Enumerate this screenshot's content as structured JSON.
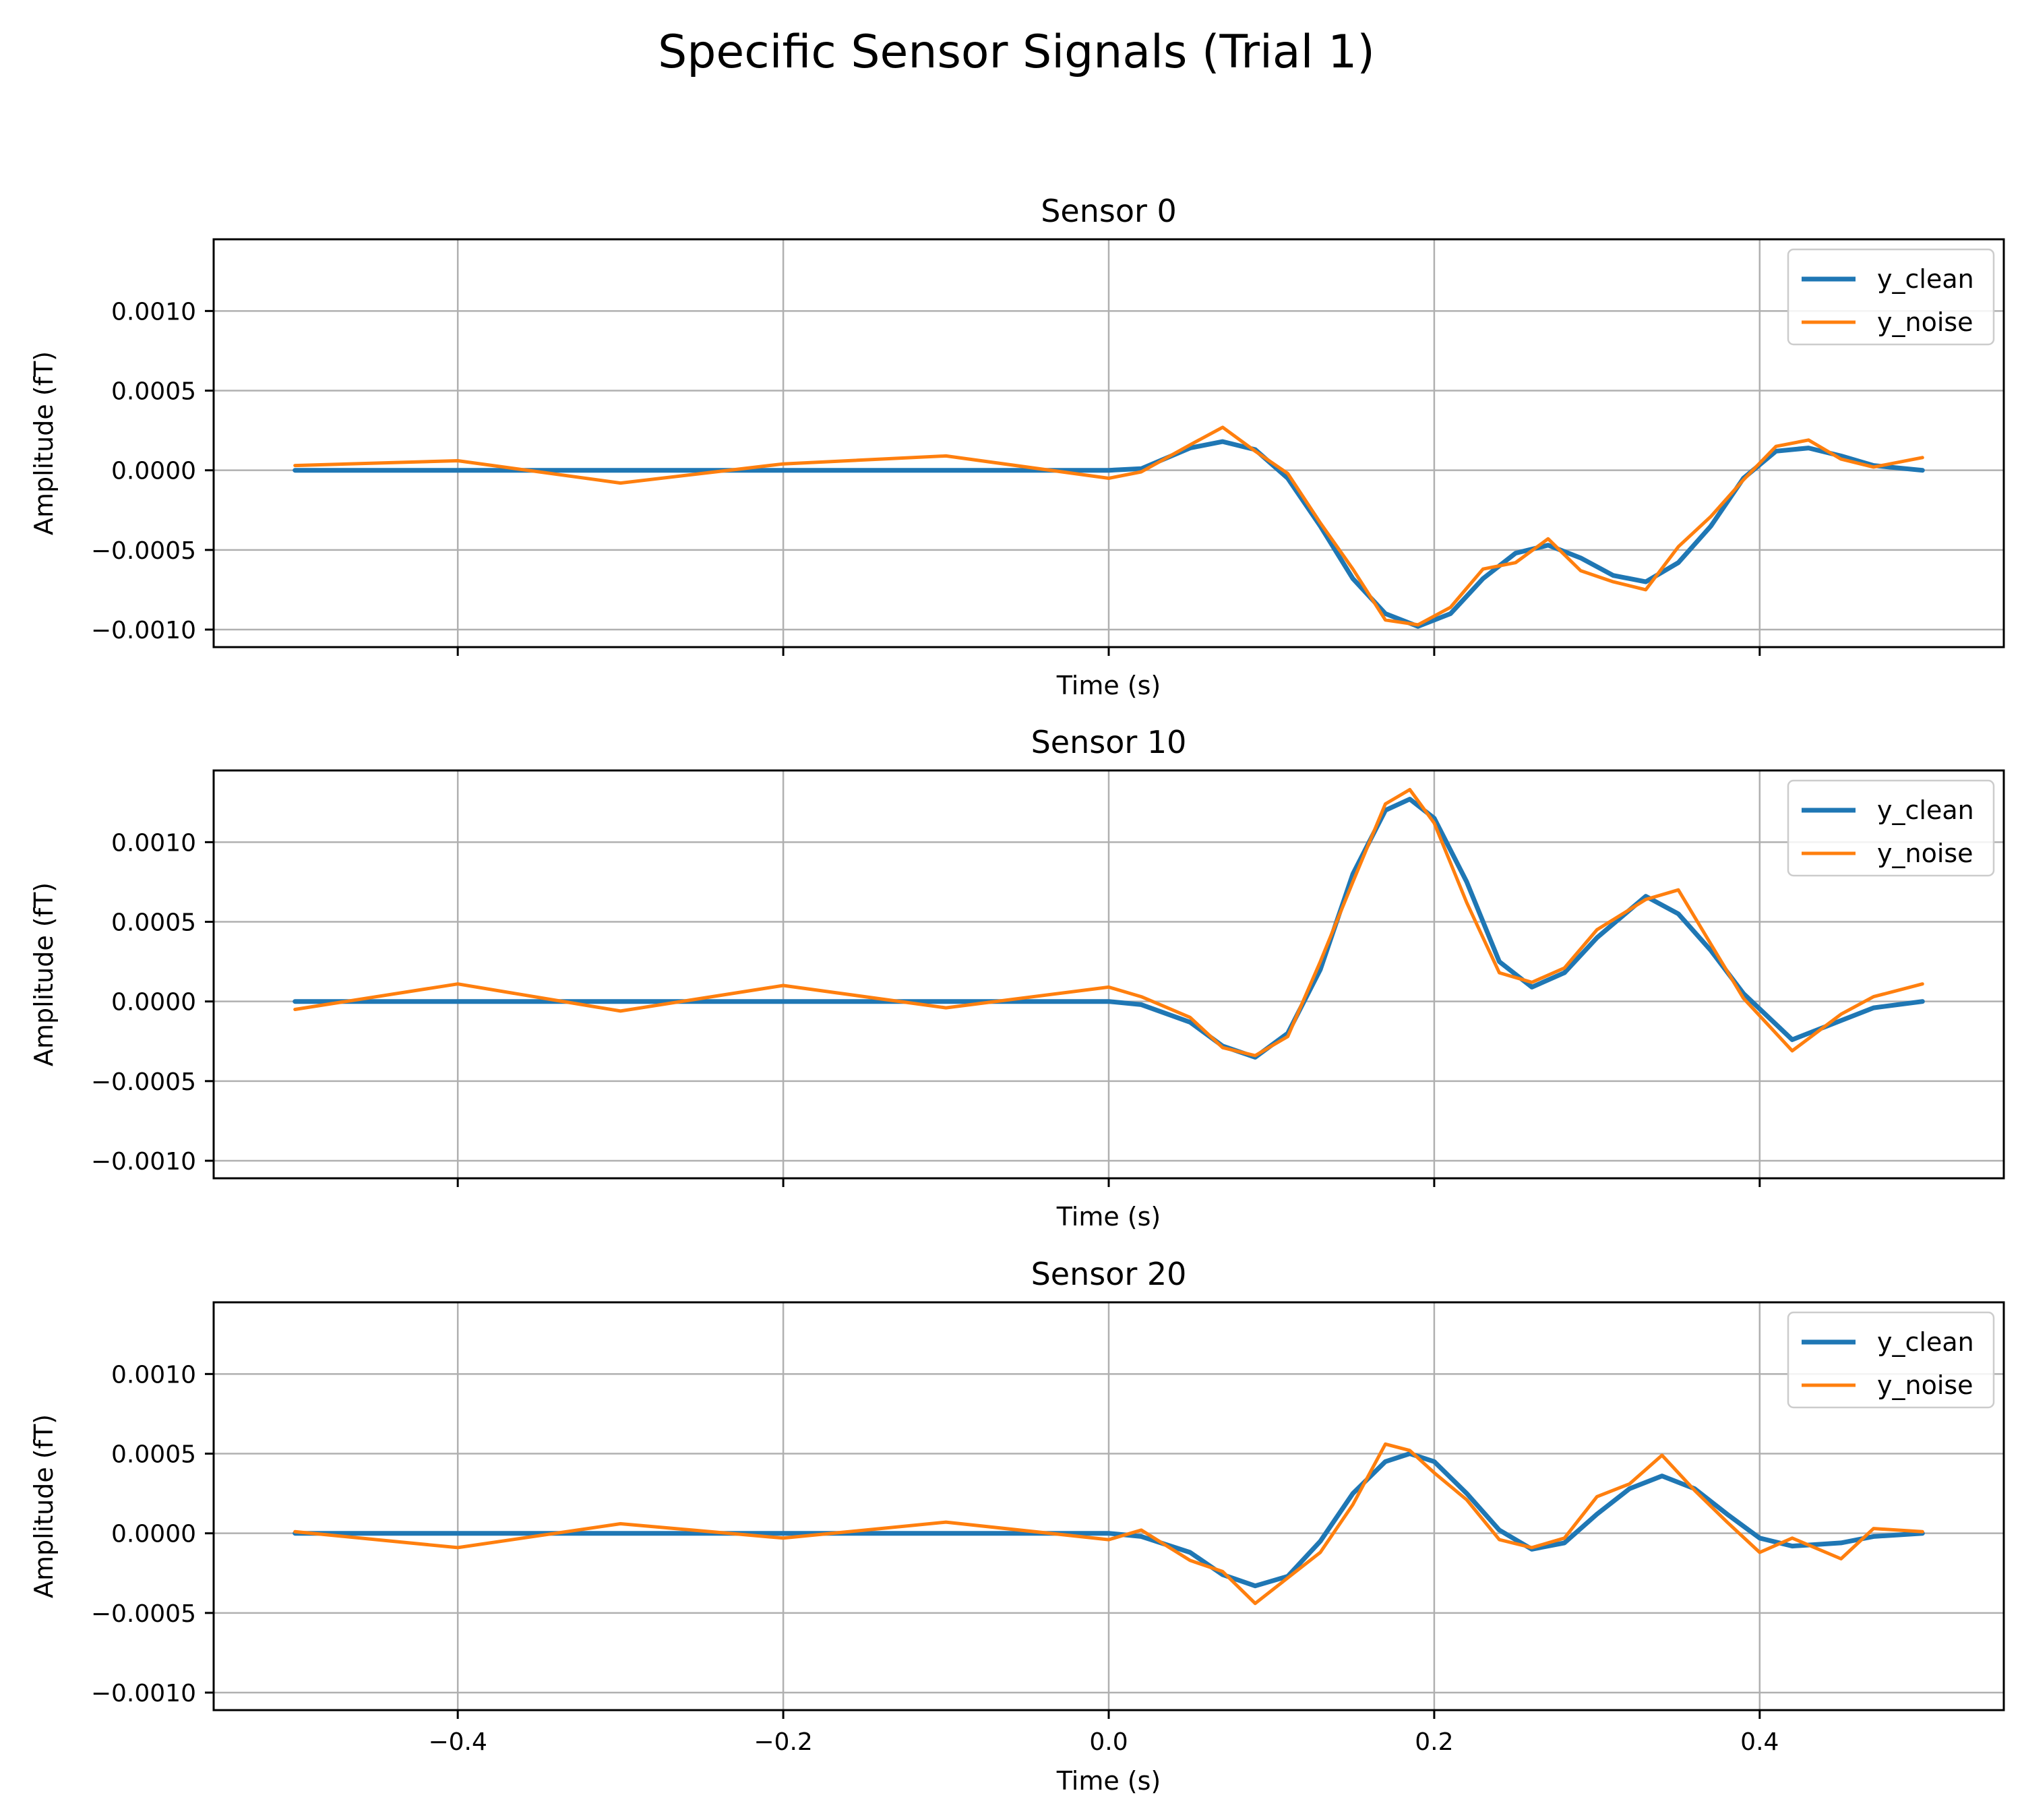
{
  "figure": {
    "title": "Specific Sensor Signals (Trial 1)"
  },
  "colors": {
    "clean": "#1f77b4",
    "noise": "#ff7f0e",
    "grid": "#b0b0b0",
    "axis": "#000000"
  },
  "chart_data": [
    {
      "type": "line",
      "title": "Sensor 0",
      "xlabel": "Time (s)",
      "ylabel": "Amplitude  (fT)",
      "xlim": [
        -0.55,
        0.55
      ],
      "ylim": [
        -0.00111,
        0.00145
      ],
      "xticks": [
        -0.4,
        -0.2,
        0.0,
        0.2,
        0.4
      ],
      "xtick_labels": [],
      "yticks": [
        -0.001,
        -0.0005,
        0.0,
        0.0005,
        0.001
      ],
      "ytick_labels": [
        "−0.0010",
        "−0.0005",
        "0.0000",
        "0.0005",
        "0.0010"
      ],
      "grid": true,
      "legend": "upper right",
      "series": [
        {
          "name": "y_clean",
          "x": [
            -0.5,
            -0.4,
            -0.3,
            -0.2,
            -0.1,
            0.0,
            0.02,
            0.05,
            0.07,
            0.09,
            0.11,
            0.13,
            0.15,
            0.17,
            0.19,
            0.21,
            0.23,
            0.25,
            0.27,
            0.29,
            0.31,
            0.33,
            0.35,
            0.37,
            0.39,
            0.41,
            0.43,
            0.45,
            0.47,
            0.5
          ],
          "y": [
            0,
            0,
            0,
            0,
            0,
            0,
            1e-05,
            0.00014,
            0.00018,
            0.00013,
            -5e-05,
            -0.00035,
            -0.00068,
            -0.0009,
            -0.00098,
            -0.0009,
            -0.00068,
            -0.00052,
            -0.00047,
            -0.00055,
            -0.00066,
            -0.0007,
            -0.00058,
            -0.00035,
            -5e-05,
            0.00012,
            0.00014,
            9e-05,
            3e-05,
            0
          ]
        },
        {
          "name": "y_noise",
          "x": [
            -0.5,
            -0.4,
            -0.3,
            -0.2,
            -0.1,
            0.0,
            0.02,
            0.05,
            0.07,
            0.09,
            0.11,
            0.13,
            0.15,
            0.17,
            0.19,
            0.21,
            0.23,
            0.25,
            0.27,
            0.29,
            0.31,
            0.33,
            0.35,
            0.37,
            0.39,
            0.41,
            0.43,
            0.45,
            0.47,
            0.5
          ],
          "y": [
            3e-05,
            6e-05,
            -8e-05,
            4e-05,
            9e-05,
            -5e-05,
            -1e-05,
            0.00016,
            0.00027,
            0.00012,
            -2e-05,
            -0.00033,
            -0.00062,
            -0.00094,
            -0.00097,
            -0.00086,
            -0.00062,
            -0.00058,
            -0.00043,
            -0.00063,
            -0.0007,
            -0.00075,
            -0.00048,
            -0.00029,
            -6e-05,
            0.00015,
            0.00019,
            7e-05,
            2e-05,
            8e-05
          ]
        }
      ]
    },
    {
      "type": "line",
      "title": "Sensor 10",
      "xlabel": "Time (s)",
      "ylabel": "Amplitude  (fT)",
      "xlim": [
        -0.55,
        0.55
      ],
      "ylim": [
        -0.00111,
        0.00145
      ],
      "xticks": [
        -0.4,
        -0.2,
        0.0,
        0.2,
        0.4
      ],
      "xtick_labels": [],
      "yticks": [
        -0.001,
        -0.0005,
        0.0,
        0.0005,
        0.001
      ],
      "ytick_labels": [
        "−0.0010",
        "−0.0005",
        "0.0000",
        "0.0005",
        "0.0010"
      ],
      "grid": true,
      "legend": "upper right",
      "series": [
        {
          "name": "y_clean",
          "x": [
            -0.5,
            -0.4,
            -0.3,
            -0.2,
            -0.1,
            0.0,
            0.02,
            0.05,
            0.07,
            0.09,
            0.11,
            0.13,
            0.15,
            0.17,
            0.185,
            0.2,
            0.22,
            0.24,
            0.26,
            0.28,
            0.3,
            0.33,
            0.35,
            0.37,
            0.39,
            0.42,
            0.45,
            0.47,
            0.5
          ],
          "y": [
            0,
            0,
            0,
            0,
            0,
            0,
            -2e-05,
            -0.00013,
            -0.00028,
            -0.00035,
            -0.0002,
            0.0002,
            0.0008,
            0.0012,
            0.00127,
            0.00115,
            0.00075,
            0.00025,
            9e-05,
            0.00018,
            0.0004,
            0.00066,
            0.00055,
            0.00032,
            5e-05,
            -0.00024,
            -0.00012,
            -4e-05,
            0
          ]
        },
        {
          "name": "y_noise",
          "x": [
            -0.5,
            -0.4,
            -0.3,
            -0.2,
            -0.1,
            0.0,
            0.02,
            0.05,
            0.07,
            0.09,
            0.11,
            0.13,
            0.15,
            0.17,
            0.185,
            0.2,
            0.22,
            0.24,
            0.26,
            0.28,
            0.3,
            0.33,
            0.35,
            0.37,
            0.39,
            0.42,
            0.45,
            0.47,
            0.5
          ],
          "y": [
            -5e-05,
            0.00011,
            -6e-05,
            0.0001,
            -4e-05,
            9e-05,
            3e-05,
            -0.0001,
            -0.00029,
            -0.00034,
            -0.00022,
            0.00025,
            0.00075,
            0.00124,
            0.00133,
            0.00112,
            0.00062,
            0.00018,
            0.00012,
            0.00021,
            0.00045,
            0.00064,
            0.0007,
            0.00036,
            2e-05,
            -0.00031,
            -8e-05,
            3e-05,
            0.00011
          ]
        }
      ]
    },
    {
      "type": "line",
      "title": "Sensor 20",
      "xlabel": "Time (s)",
      "ylabel": "Amplitude  (fT)",
      "xlim": [
        -0.55,
        0.55
      ],
      "ylim": [
        -0.00111,
        0.00145
      ],
      "xticks": [
        -0.4,
        -0.2,
        0.0,
        0.2,
        0.4
      ],
      "xtick_labels": [
        "−0.4",
        "−0.2",
        "0.0",
        "0.2",
        "0.4"
      ],
      "yticks": [
        -0.001,
        -0.0005,
        0.0,
        0.0005,
        0.001
      ],
      "ytick_labels": [
        "−0.0010",
        "−0.0005",
        "0.0000",
        "0.0005",
        "0.0010"
      ],
      "grid": true,
      "legend": "upper right",
      "series": [
        {
          "name": "y_clean",
          "x": [
            -0.5,
            -0.4,
            -0.3,
            -0.2,
            -0.1,
            0.0,
            0.02,
            0.05,
            0.07,
            0.09,
            0.11,
            0.13,
            0.15,
            0.17,
            0.185,
            0.2,
            0.22,
            0.24,
            0.26,
            0.28,
            0.3,
            0.32,
            0.34,
            0.36,
            0.38,
            0.4,
            0.42,
            0.45,
            0.47,
            0.5
          ],
          "y": [
            0,
            0,
            0,
            0,
            0,
            0,
            -2e-05,
            -0.00012,
            -0.00026,
            -0.00033,
            -0.00027,
            -5e-05,
            0.00025,
            0.00045,
            0.0005,
            0.00045,
            0.00025,
            2e-05,
            -0.0001,
            -6e-05,
            0.00012,
            0.00028,
            0.00036,
            0.00028,
            0.00012,
            -3e-05,
            -8e-05,
            -6e-05,
            -2e-05,
            0
          ]
        },
        {
          "name": "y_noise",
          "x": [
            -0.5,
            -0.4,
            -0.3,
            -0.2,
            -0.1,
            0.0,
            0.02,
            0.05,
            0.07,
            0.09,
            0.11,
            0.13,
            0.15,
            0.17,
            0.185,
            0.2,
            0.22,
            0.24,
            0.26,
            0.28,
            0.3,
            0.32,
            0.34,
            0.36,
            0.38,
            0.4,
            0.42,
            0.45,
            0.47,
            0.5
          ],
          "y": [
            1e-05,
            -9e-05,
            6e-05,
            -3e-05,
            7e-05,
            -4e-05,
            2e-05,
            -0.00017,
            -0.00024,
            -0.00044,
            -0.00028,
            -0.00012,
            0.00018,
            0.00056,
            0.00052,
            0.00038,
            0.00021,
            -4e-05,
            -9e-05,
            -3e-05,
            0.00023,
            0.00031,
            0.00049,
            0.00027,
            7e-05,
            -0.00012,
            -3e-05,
            -0.00016,
            3e-05,
            1e-05
          ]
        }
      ]
    }
  ]
}
